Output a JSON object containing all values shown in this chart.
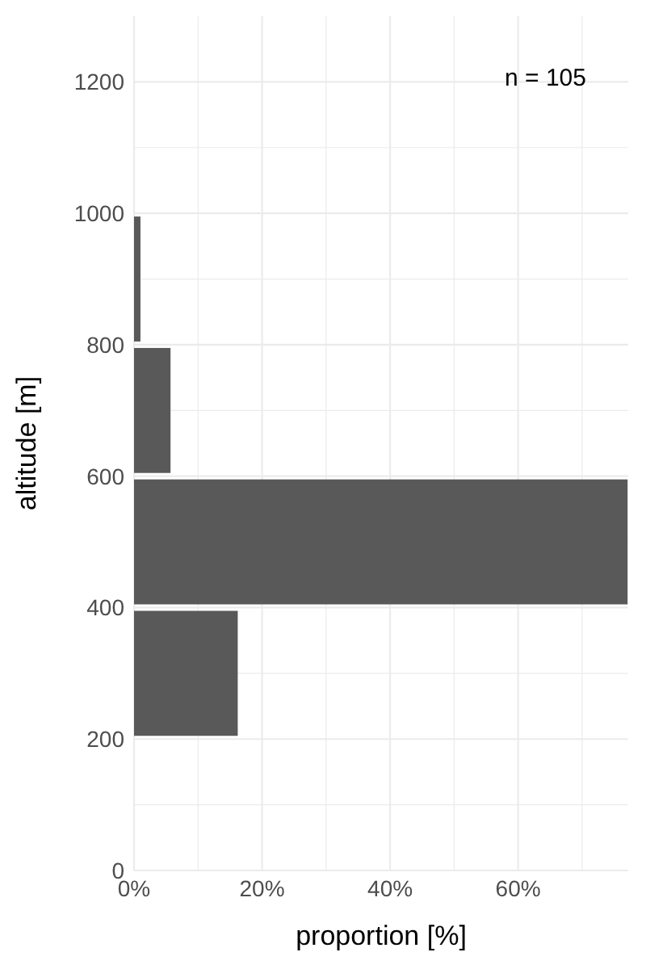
{
  "chart_data": {
    "type": "histogram",
    "orientation": "horizontal",
    "xlabel": "proportion [%]",
    "ylabel": "altitude [m]",
    "bins": [
      200,
      400,
      600,
      800,
      1000
    ],
    "values": [
      16.2,
      77.1,
      5.7,
      1.0
    ],
    "color": "#595959",
    "xlim": [
      0,
      77.2
    ],
    "xticks": [
      {
        "value": 0,
        "label": "0%"
      },
      {
        "value": 10,
        "label": null
      },
      {
        "value": 20,
        "label": "20%"
      },
      {
        "value": 30,
        "label": null
      },
      {
        "value": 40,
        "label": "40%"
      },
      {
        "value": 50,
        "label": null
      },
      {
        "value": 60,
        "label": "60%"
      },
      {
        "value": 70,
        "label": null
      }
    ],
    "ylim": [
      0,
      1300
    ],
    "yticks": [
      0,
      {
        "value": 100,
        "label": null
      },
      200,
      {
        "value": 300,
        "label": null
      },
      400,
      {
        "value": 500,
        "label": null
      },
      600,
      {
        "value": 700,
        "label": null
      },
      800,
      {
        "value": 900,
        "label": null
      },
      1000,
      {
        "value": 1100,
        "label": null
      },
      1200
    ],
    "grid": true,
    "annotations": [
      "n = 105"
    ]
  }
}
